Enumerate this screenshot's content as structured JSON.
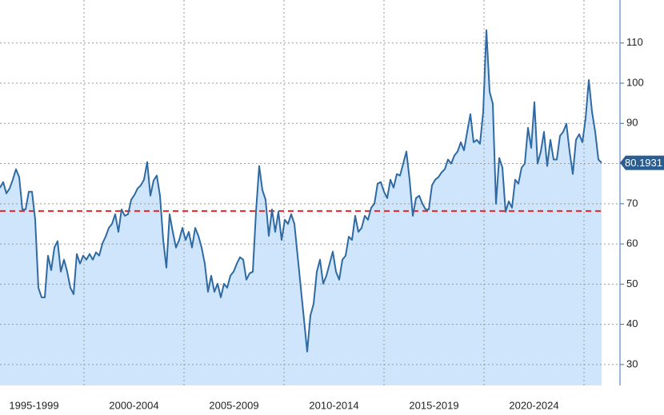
{
  "chart_data": {
    "type": "area",
    "series": [
      {
        "color": "#2f6aa3",
        "fill": "#cfe5fb",
        "x": [
          1995.8,
          1995.96,
          1996.12,
          1996.28,
          1996.44,
          1996.6,
          1996.76,
          1996.92,
          1997.08,
          1997.24,
          1997.4,
          1997.56,
          1997.72,
          1997.88,
          1998.04,
          1998.2,
          1998.36,
          1998.52,
          1998.68,
          1998.84,
          1999,
          1999.16,
          1999.32,
          1999.48,
          1999.64,
          1999.8,
          1999.96,
          2000.12,
          2000.28,
          2000.44,
          2000.6,
          2000.76,
          2000.92,
          2001.08,
          2001.24,
          2001.4,
          2001.56,
          2001.72,
          2001.88,
          2002.04,
          2002.2,
          2002.36,
          2002.52,
          2002.68,
          2002.84,
          2003,
          2003.16,
          2003.32,
          2003.48,
          2003.64,
          2003.8,
          2003.96,
          2004.12,
          2004.28,
          2004.44,
          2004.6,
          2004.76,
          2004.92,
          2005.08,
          2005.24,
          2005.4,
          2005.56,
          2005.72,
          2005.88,
          2006.04,
          2006.2,
          2006.36,
          2006.52,
          2006.68,
          2006.84,
          2007,
          2007.16,
          2007.32,
          2007.48,
          2007.64,
          2007.8,
          2007.96,
          2008.12,
          2008.28,
          2008.44,
          2008.6,
          2008.76,
          2008.92,
          2009.08,
          2009.24,
          2009.4,
          2009.56,
          2009.72,
          2009.88,
          2010.04,
          2010.2,
          2010.36,
          2010.52,
          2010.68,
          2010.84,
          2011,
          2011.16,
          2011.32,
          2011.48,
          2011.64,
          2011.8,
          2011.96,
          2012.12,
          2012.28,
          2012.44,
          2012.6,
          2012.76,
          2012.92,
          2013.08,
          2013.24,
          2013.4,
          2013.56,
          2013.72,
          2013.88,
          2014.04,
          2014.2,
          2014.36,
          2014.52,
          2014.68,
          2014.84,
          2015,
          2015.16,
          2015.32,
          2015.48,
          2015.64,
          2015.8,
          2015.96,
          2016.12,
          2016.28,
          2016.44,
          2016.6,
          2016.76,
          2016.92,
          2017.08,
          2017.24,
          2017.4,
          2017.56,
          2017.72,
          2017.88,
          2018.04,
          2018.2,
          2018.36,
          2018.52,
          2018.68,
          2018.84,
          2019,
          2019.16,
          2019.32,
          2019.48,
          2019.64,
          2019.8,
          2019.96,
          2020.12,
          2020.28,
          2020.44,
          2020.6,
          2020.76,
          2020.92,
          2021.08,
          2021.24,
          2021.4,
          2021.56,
          2021.72,
          2021.88,
          2022.04,
          2022.2,
          2022.36,
          2022.52,
          2022.68,
          2022.84,
          2023,
          2023.16,
          2023.32,
          2023.48,
          2023.64,
          2023.8,
          2023.96,
          2024.12,
          2024.28,
          2024.44,
          2024.6,
          2024.76,
          2024.92,
          2025.08,
          2025.24,
          2025.4,
          2025.56,
          2025.72,
          2025.88
        ],
        "values": [
          74.0,
          75.4,
          72.6,
          73.8,
          76.0,
          78.6,
          76.6,
          68.6,
          68.6,
          73.0,
          73.0,
          66.0,
          49.1,
          46.7,
          46.7,
          57.1,
          53.5,
          59.1,
          60.7,
          53.1,
          56.1,
          53.1,
          49.1,
          47.5,
          57.5,
          55.1,
          57.1,
          56.1,
          57.5,
          56.1,
          57.9,
          57.1,
          60.1,
          61.8,
          64.0,
          65.0,
          67.4,
          63.0,
          68.6,
          67.0,
          67.4,
          71.0,
          72.2,
          73.8,
          74.6,
          76.0,
          80.4,
          72.0,
          75.8,
          77.0,
          72.0,
          61.0,
          54.1,
          67.4,
          63.0,
          59.1,
          61.0,
          64.0,
          61.0,
          63.0,
          59.1,
          64.0,
          62.0,
          59.1,
          55.1,
          48.1,
          52.1,
          48.1,
          50.1,
          46.7,
          50.1,
          49.1,
          52.1,
          53.1,
          55.1,
          56.7,
          56.1,
          51.1,
          52.7,
          53.1,
          68.0,
          79.4,
          73.4,
          71.0,
          62.0,
          68.6,
          63.0,
          68.0,
          61.0,
          66.0,
          65.0,
          67.4,
          65.0,
          57.1,
          49.1,
          41.2,
          33.2,
          42.2,
          45.1,
          53.1,
          56.1,
          50.1,
          52.1,
          55.1,
          58.1,
          53.1,
          51.1,
          56.1,
          57.1,
          61.8,
          61.0,
          67.0,
          63.0,
          64.0,
          67.0,
          66.0,
          69.0,
          70.0,
          75.0,
          75.4,
          73.0,
          71.4,
          76.0,
          74.0,
          77.4,
          77.0,
          80.0,
          83.0,
          76.0,
          67.0,
          71.4,
          72.0,
          70.0,
          68.6,
          68.6,
          74.6,
          76.0,
          76.6,
          77.8,
          78.6,
          81.0,
          80.0,
          82.0,
          83.0,
          85.3,
          83.3,
          87.9,
          92.3,
          85.3,
          85.9,
          84.9,
          92.9,
          113.2,
          97.9,
          94.9,
          70.0,
          81.4,
          79.0,
          68.0,
          70.6,
          69.0,
          76.0,
          75.0,
          79.0,
          80.0,
          88.9,
          83.9,
          95.3,
          80.0,
          83.0,
          87.9,
          79.4,
          85.9,
          81.0,
          81.0,
          86.9,
          87.9,
          89.9,
          83.0,
          77.4,
          85.9,
          87.3,
          85.3,
          91.3,
          100.8,
          92.9,
          87.9,
          81.0,
          80.1931
        ]
      }
    ],
    "reference_line": {
      "value": 68.2,
      "color": "#e0262b"
    },
    "xlim": [
      1995.8,
      2026.8
    ],
    "xticks": [
      {
        "value": 1997.5,
        "label": "1995-1999"
      },
      {
        "value": 2002.5,
        "label": "2000-2004"
      },
      {
        "value": 2007.5,
        "label": "2005-2009"
      },
      {
        "value": 2012.5,
        "label": "2010-2014"
      },
      {
        "value": 2017.5,
        "label": "2015-2019"
      },
      {
        "value": 2022.5,
        "label": "2020-2024"
      }
    ],
    "xgrid": [
      2000,
      2005,
      2010,
      2015,
      2020,
      2025
    ],
    "ylim": [
      24.8,
      120.7
    ],
    "yticks": [
      30,
      40,
      50,
      60,
      70,
      80,
      90,
      100,
      110
    ],
    "y_axis_side": "right",
    "grid": true
  }
}
